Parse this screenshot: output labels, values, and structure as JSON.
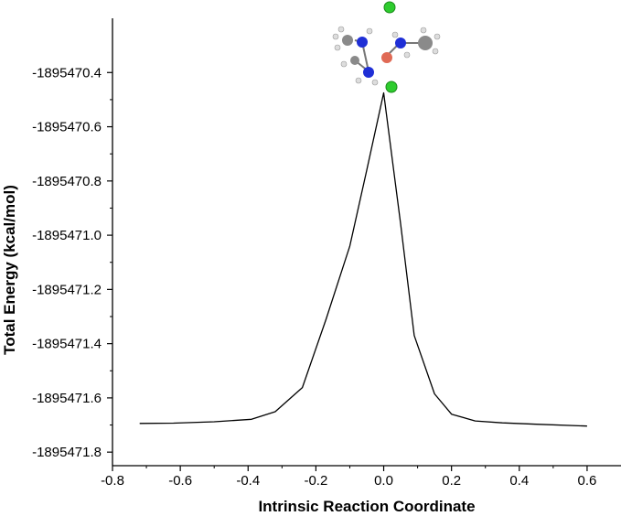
{
  "chart_data": {
    "type": "line",
    "title": "",
    "xlabel": "Intrinsic Reaction Coordinate",
    "ylabel": "Total Energy (kcal/mol)",
    "xlim": [
      -0.8,
      0.7
    ],
    "ylim": [
      -1895471.85,
      -1895470.2
    ],
    "xticks": [
      -0.8,
      -0.6,
      -0.4,
      -0.2,
      0.0,
      0.2,
      0.4,
      0.6
    ],
    "xtick_labels": [
      "-0.8",
      "-0.6",
      "-0.4",
      "-0.2",
      "0.0",
      "0.2",
      "0.4",
      "0.6"
    ],
    "yticks": [
      -1895470.4,
      -1895470.6,
      -1895470.8,
      -1895471.0,
      -1895471.2,
      -1895471.4,
      -1895471.6,
      -1895471.8
    ],
    "ytick_labels": [
      "-1895470.4",
      "-1895470.6",
      "-1895470.8",
      "-1895471.0",
      "-1895471.2",
      "-1895471.4",
      "-1895471.6",
      "-1895471.8"
    ],
    "grid": false,
    "legend": "none",
    "series": [
      {
        "color": "#000000",
        "x": [
          -0.72,
          -0.62,
          -0.5,
          -0.39,
          -0.32,
          -0.24,
          -0.17,
          -0.1,
          -0.05,
          0.0,
          0.05,
          0.09,
          0.15,
          0.2,
          0.27,
          0.35,
          0.45,
          0.6
        ],
        "y": [
          -1895471.694,
          -1895471.693,
          -1895471.688,
          -1895471.679,
          -1895471.651,
          -1895471.562,
          -1895471.31,
          -1895471.04,
          -1895470.76,
          -1895470.475,
          -1895470.96,
          -1895471.37,
          -1895471.585,
          -1895471.66,
          -1895471.685,
          -1895471.692,
          -1895471.697,
          -1895471.704
        ]
      }
    ],
    "inset": {
      "description_icon": "molecule-structure-icon"
    }
  }
}
